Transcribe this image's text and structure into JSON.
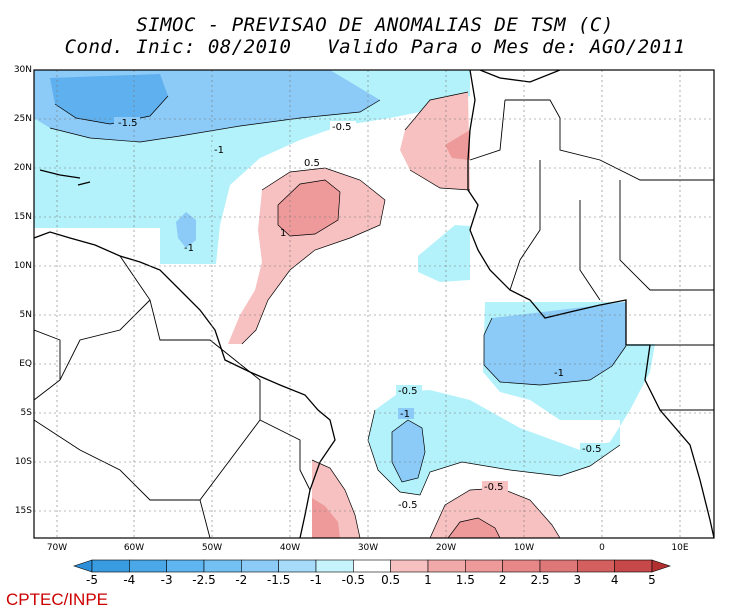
{
  "title_line1": "SIMOC - PREVISAO DE ANOMALIAS DE TSM (C)",
  "title_line2": "Cond. Inic: 08/2010   Valido Para o Mes de: AGO/2011",
  "footer": "CPTEC/INPE",
  "colors": {
    "neg_05": "#b3f2fa",
    "neg_10": "#8ccaf7",
    "neg_15": "#5fb0ef",
    "pos_05": "#f7c1c1",
    "pos_10": "#ee9a9a",
    "pos_15": "#de7878"
  },
  "lat_labels": [
    "30N",
    "25N",
    "20N",
    "15N",
    "10N",
    "5N",
    "EQ",
    "5S",
    "10S",
    "15S"
  ],
  "lon_labels": [
    "70W",
    "60W",
    "50W",
    "40W",
    "30W",
    "20W",
    "10W",
    "0",
    "10E"
  ],
  "contour_labels": [
    "-1.5",
    "-1",
    "-0.5",
    "0.5",
    "1",
    "-1",
    "-0.5",
    "-1",
    "-1",
    "-0.5",
    "-0.5",
    "-0.5"
  ],
  "colorbar": {
    "labels": [
      "-5",
      "-4",
      "-3",
      "-2.5",
      "-2",
      "-1.5",
      "-1",
      "-0.5",
      "0.5",
      "1",
      "1.5",
      "2",
      "2.5",
      "3",
      "4",
      "5"
    ],
    "colors": [
      "#2e8fd9",
      "#3a9ce0",
      "#4aa8e8",
      "#5fb5ef",
      "#73c0f2",
      "#8ccaf7",
      "#a6dcfa",
      "#c6f3fc",
      "#ffffff",
      "#f7c1c1",
      "#f2a9a9",
      "#ee9a9a",
      "#e88787",
      "#de7878",
      "#d45f5f",
      "#c64848",
      "#b33030"
    ]
  }
}
